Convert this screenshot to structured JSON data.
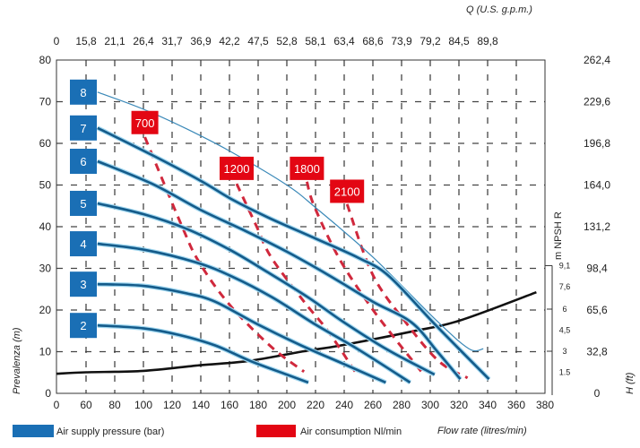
{
  "chart_data": {
    "type": "line",
    "title": "",
    "xlabel": "Flow rate (litres/min)",
    "ylabel": "Prevalenza (m)",
    "x2label": "Q (U.S. g.p.m.)",
    "y2label": "H (ft)",
    "y3label": "m NPSH R",
    "x_ticks": [
      "0",
      "60",
      "80",
      "100",
      "120",
      "140",
      "160",
      "180",
      "200",
      "220",
      "240",
      "260",
      "280",
      "300",
      "320",
      "340",
      "360",
      "380"
    ],
    "x_tick_values": [
      0,
      60,
      80,
      100,
      120,
      140,
      160,
      180,
      200,
      220,
      240,
      260,
      280,
      300,
      320,
      340,
      360,
      380
    ],
    "x2_ticks": [
      "0",
      "15,8",
      "21,1",
      "26,4",
      "31,7",
      "36,9",
      "42,2",
      "47,5",
      "52,8",
      "58,1",
      "63,4",
      "68,6",
      "73,9",
      "79,2",
      "84,5",
      "89,8"
    ],
    "y_ticks": [
      "0",
      "10",
      "20",
      "30",
      "40",
      "50",
      "60",
      "70",
      "80"
    ],
    "y_tick_values": [
      0,
      10,
      20,
      30,
      40,
      50,
      60,
      70,
      80
    ],
    "y2_ticks": [
      "0",
      "32,8",
      "65,6",
      "98,4",
      "131,2",
      "164,0",
      "196,8",
      "229,6",
      "262,4"
    ],
    "npsh_ticks": [
      "1.5",
      "3",
      "4,5",
      "6",
      "7,6",
      "9,1"
    ],
    "npsh_tick_values": [
      1.5,
      3,
      4.5,
      6,
      7.6,
      9.1
    ],
    "xlim": [
      0,
      380
    ],
    "ylim": [
      0,
      80
    ],
    "npsh_lim": [
      0,
      9.1
    ],
    "grid": true,
    "legend": {
      "placement": "bottom",
      "items": [
        {
          "label": "Air supply pressure (bar)",
          "color": "#1a6fb5"
        },
        {
          "label": "Air consumption Nl/min",
          "color": "#e30613"
        }
      ]
    },
    "pressure_series": [
      {
        "name": "8",
        "color": "#1a6fb5",
        "thin": true,
        "points": [
          [
            68,
            72.3
          ],
          [
            100,
            68.2
          ],
          [
            130,
            63.5
          ],
          [
            162,
            57.8
          ],
          [
            200,
            50
          ],
          [
            221,
            44.3
          ],
          [
            260,
            32.7
          ],
          [
            304,
            17.6
          ],
          [
            327,
            10.7
          ],
          [
            337,
            10.7
          ]
        ]
      },
      {
        "name": "7",
        "color": "#1a6fb5",
        "points": [
          [
            68,
            63.7
          ],
          [
            106,
            57.2
          ],
          [
            140,
            51
          ],
          [
            162,
            46.5
          ],
          [
            187,
            42.2
          ],
          [
            221,
            37
          ],
          [
            250,
            32.5
          ],
          [
            271,
            28.2
          ],
          [
            304,
            16.3
          ],
          [
            341,
            3.4
          ]
        ]
      },
      {
        "name": "6",
        "color": "#1a6fb5",
        "points": [
          [
            68,
            55.7
          ],
          [
            106,
            50.3
          ],
          [
            140,
            44
          ],
          [
            171,
            39
          ],
          [
            200,
            34
          ],
          [
            229,
            28.4
          ],
          [
            260,
            22
          ],
          [
            287,
            17
          ],
          [
            305,
            10
          ],
          [
            321,
            3.4
          ]
        ]
      },
      {
        "name": "5",
        "color": "#1a6fb5",
        "points": [
          [
            68,
            45.6
          ],
          [
            100,
            43
          ],
          [
            130,
            39.5
          ],
          [
            160,
            34.5
          ],
          [
            187,
            29
          ],
          [
            215,
            23
          ],
          [
            240,
            17
          ],
          [
            270,
            10.5
          ],
          [
            303,
            4.5
          ]
        ]
      },
      {
        "name": "4",
        "color": "#1a6fb5",
        "points": [
          [
            68,
            35.9
          ],
          [
            100,
            34.5
          ],
          [
            137,
            31.4
          ],
          [
            162,
            28
          ],
          [
            190,
            23
          ],
          [
            220,
            16.5
          ],
          [
            250,
            10.5
          ],
          [
            286,
            2.6
          ]
        ]
      },
      {
        "name": "3",
        "color": "#1a6fb5",
        "points": [
          [
            68,
            26.2
          ],
          [
            100,
            25.8
          ],
          [
            130,
            24
          ],
          [
            150,
            22
          ],
          [
            180,
            16.5
          ],
          [
            210,
            11.5
          ],
          [
            240,
            7
          ],
          [
            269,
            2.6
          ]
        ]
      },
      {
        "name": "2",
        "color": "#1a6fb5",
        "points": [
          [
            68,
            16.3
          ],
          [
            100,
            15.6
          ],
          [
            125,
            14
          ],
          [
            150,
            11.5
          ],
          [
            175,
            7.7
          ],
          [
            200,
            4.5
          ],
          [
            215,
            2.6
          ]
        ]
      }
    ],
    "pressure_label_values": [
      72.3,
      63.7,
      55.7,
      45.6,
      35.9,
      26.2,
      16.3
    ],
    "air_series": [
      {
        "name": "700",
        "color": "#e30613",
        "points": [
          [
            101,
            61.5
          ],
          [
            127,
            40
          ],
          [
            139,
            31.4
          ],
          [
            160,
            21.3
          ],
          [
            189,
            11.2
          ],
          [
            212,
            5.2
          ]
        ]
      },
      {
        "name": "1200",
        "color": "#e30613",
        "points": [
          [
            165,
            50.3
          ],
          [
            179,
            40
          ],
          [
            189,
            32.7
          ],
          [
            212,
            22
          ],
          [
            229,
            14.8
          ],
          [
            248,
            5
          ]
        ]
      },
      {
        "name": "1800",
        "color": "#e30613",
        "points": [
          [
            214,
            50.8
          ],
          [
            219,
            45
          ],
          [
            236,
            32.7
          ],
          [
            256,
            22
          ],
          [
            275,
            13.3
          ],
          [
            295,
            4.7
          ]
        ]
      },
      {
        "name": "2100",
        "color": "#e30613",
        "points": [
          [
            242,
            45.4
          ],
          [
            260,
            28.4
          ],
          [
            283,
            17
          ],
          [
            306,
            7.7
          ],
          [
            326,
            3.7
          ]
        ]
      }
    ],
    "air_label_anchor": [
      [
        101,
        65
      ],
      [
        165,
        54
      ],
      [
        214,
        54
      ],
      [
        242,
        48.5
      ]
    ],
    "npsh_series": {
      "color": "#111111",
      "points": [
        [
          0,
          1.4
        ],
        [
          60,
          1.5
        ],
        [
          100,
          1.6
        ],
        [
          139,
          2.0
        ],
        [
          173,
          2.3
        ],
        [
          212,
          3.0
        ],
        [
          237,
          3.4
        ],
        [
          287,
          4.4
        ],
        [
          321,
          5.2
        ],
        [
          374,
          7.2
        ]
      ]
    }
  }
}
